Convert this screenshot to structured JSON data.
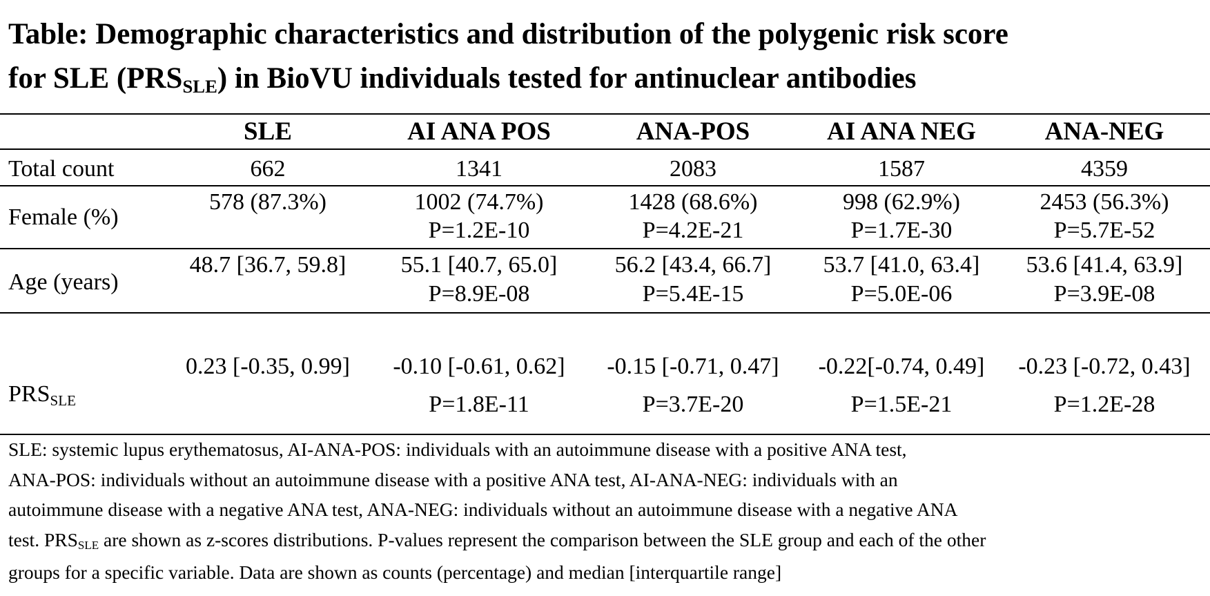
{
  "title": {
    "line1": "Table: Demographic characteristics and distribution of the polygenic risk score",
    "line2_pre": "for SLE (PRS",
    "line2_sub": "SLE",
    "line2_post": ") in BioVU individuals tested for antinuclear antibodies"
  },
  "columns": [
    "SLE",
    "AI ANA POS",
    "ANA-POS",
    "AI ANA NEG",
    "ANA-NEG"
  ],
  "rows": {
    "total": {
      "label": "Total count",
      "values": [
        "662",
        "1341",
        "2083",
        "1587",
        "4359"
      ]
    },
    "female": {
      "label": "Female (%)",
      "values": [
        "578 (87.3%)",
        "1002 (74.7%)",
        "1428 (68.6%)",
        "998 (62.9%)",
        "2453 (56.3%)"
      ],
      "pvalues": [
        "",
        "P=1.2E-10",
        "P=4.2E-21",
        "P=1.7E-30",
        "P=5.7E-52"
      ]
    },
    "age": {
      "label": "Age (years)",
      "values": [
        "48.7 [36.7, 59.8]",
        "55.1 [40.7, 65.0]",
        "56.2 [43.4, 66.7]",
        "53.7 [41.0, 63.4]",
        "53.6 [41.4, 63.9]"
      ],
      "pvalues": [
        "",
        "P=8.9E-08",
        "P=5.4E-15",
        "P=5.0E-06",
        "P=3.9E-08"
      ]
    },
    "prs": {
      "label_pre": "PRS",
      "label_sub": "SLE",
      "values": [
        "0.23 [-0.35, 0.99]",
        "-0.10 [-0.61, 0.62]",
        "-0.15 [-0.71, 0.47]",
        "-0.22[-0.74, 0.49]",
        "-0.23 [-0.72, 0.43]"
      ],
      "pvalues": [
        "",
        "P=1.8E-11",
        "P=3.7E-20",
        "P=1.5E-21",
        "P=1.2E-28"
      ]
    }
  },
  "footnote": {
    "line1": "SLE: systemic lupus erythematosus, AI-ANA-POS: individuals with an autoimmune disease with a positive ANA test,",
    "line2": "ANA-POS: individuals without an autoimmune disease with a positive ANA test, AI-ANA-NEG: individuals with an",
    "line3": "autoimmune disease with a negative ANA test, ANA-NEG: individuals without an autoimmune disease with a negative ANA",
    "line4_pre": "test. PRS",
    "line4_sub": "SLE",
    "line4_post": " are shown as z-scores distributions. P-values represent the comparison between the SLE group and each of the other",
    "line5": "groups for a specific variable. Data are shown as counts (percentage) and median [interquartile range]"
  }
}
